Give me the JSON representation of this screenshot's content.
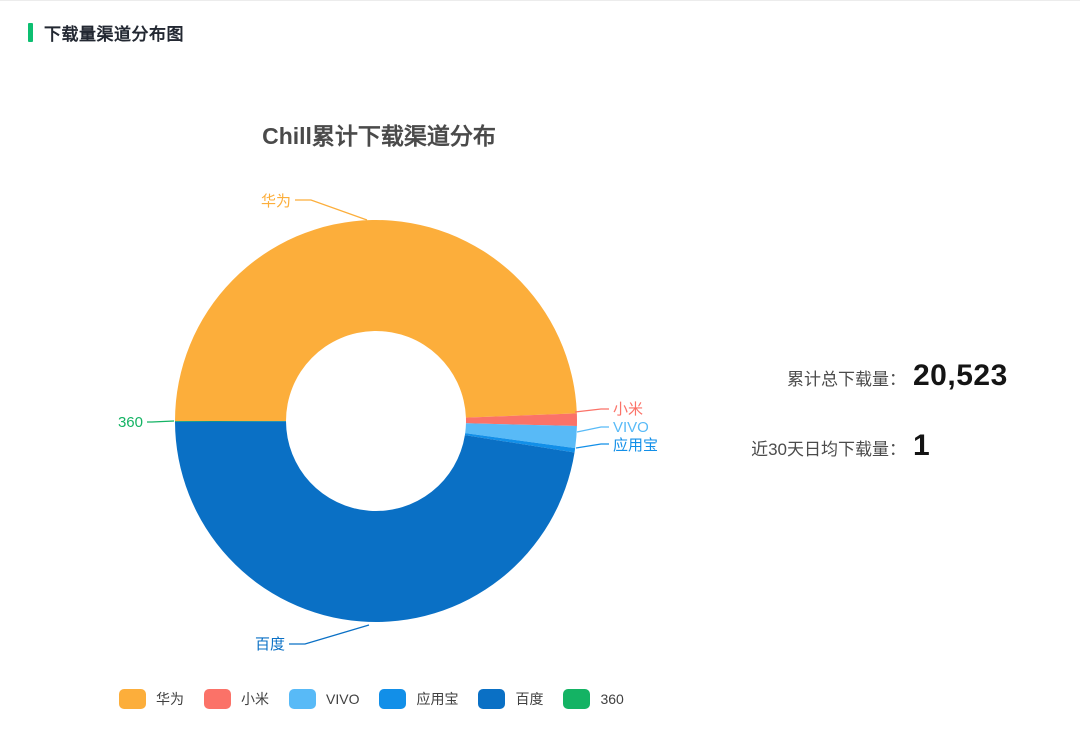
{
  "header": {
    "title": "下载量渠道分布图",
    "accent_color": "#0DBF71"
  },
  "stats": {
    "rows": [
      {
        "label": "累计总下载量：",
        "value": "20,523"
      },
      {
        "label": "近30天日均下载量：",
        "value": "1"
      }
    ]
  },
  "chart_data": {
    "type": "pie",
    "subtype": "donut",
    "title": "Chill累计下载渠道分布",
    "total_downloads": 20523,
    "legend_position": "bottom",
    "start_angle": "left edge, clockwise",
    "series": [
      {
        "id": "huawei",
        "name": "华为",
        "percent": 49.4,
        "color": "#FCAE3B"
      },
      {
        "id": "xiaomi",
        "name": "小米",
        "percent": 1.0,
        "color": "#FB7268"
      },
      {
        "id": "vivo",
        "name": "VIVO",
        "percent": 1.75,
        "color": "#58BAF7"
      },
      {
        "id": "yingyongbao",
        "name": "应用宝",
        "percent": 0.35,
        "color": "#128FE8"
      },
      {
        "id": "baidu",
        "name": "百度",
        "percent": 47.45,
        "color": "#0A70C5"
      },
      {
        "id": "s360",
        "name": "360",
        "percent": 0.05,
        "color": "#14B364"
      }
    ]
  }
}
